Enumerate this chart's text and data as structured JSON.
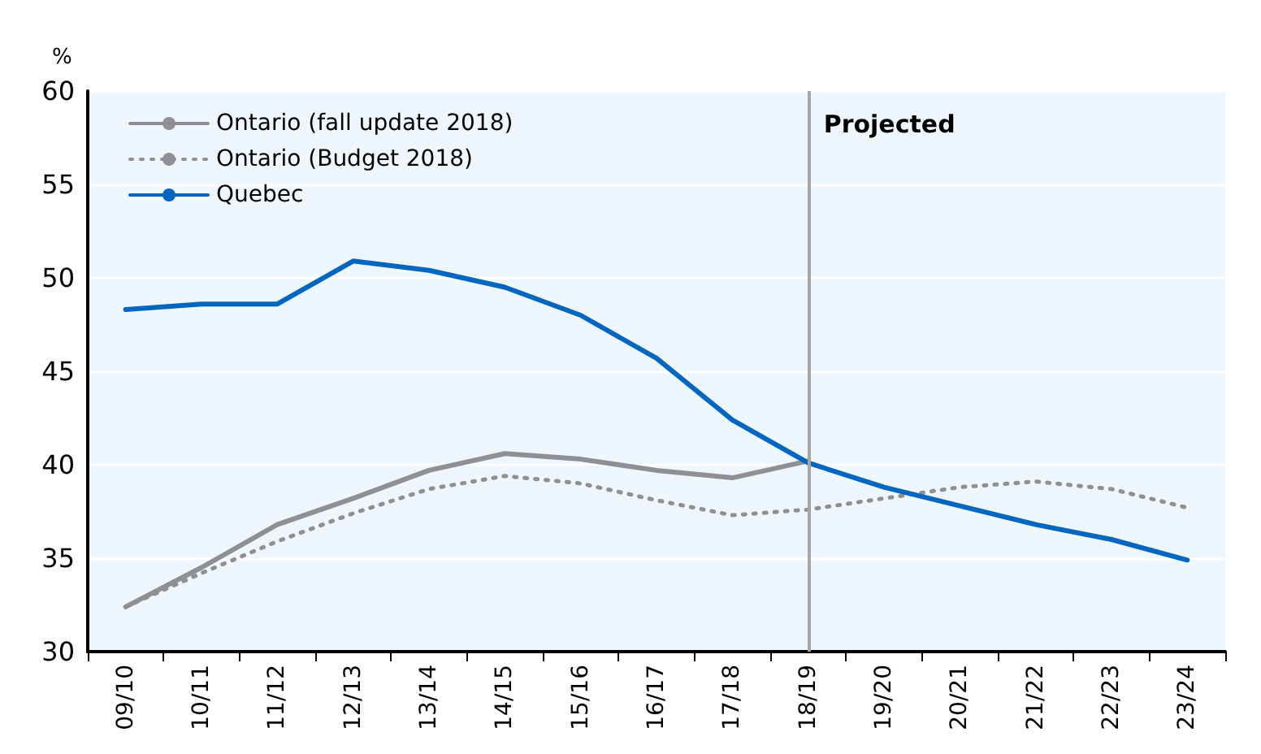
{
  "chart_data": {
    "type": "line",
    "ylabel": "%",
    "categories": [
      "09/10",
      "10/11",
      "11/12",
      "12/13",
      "13/14",
      "14/15",
      "15/16",
      "16/17",
      "17/18",
      "18/19",
      "19/20",
      "20/21",
      "21/22",
      "22/23",
      "23/24"
    ],
    "series": [
      {
        "name": "Ontario (fall update 2018)",
        "color": "#8e9095",
        "line_style": "solid",
        "values": [
          32.4,
          34.5,
          36.8,
          38.2,
          39.7,
          40.6,
          40.3,
          39.7,
          39.3,
          40.2,
          null,
          null,
          null,
          null,
          null
        ]
      },
      {
        "name": "Ontario (Budget 2018)",
        "color": "#8e9095",
        "line_style": "dotted",
        "values": [
          32.4,
          34.2,
          35.9,
          37.4,
          38.7,
          39.4,
          39.0,
          38.1,
          37.3,
          37.6,
          38.2,
          38.8,
          39.1,
          38.7,
          37.7
        ]
      },
      {
        "name": "Quebec",
        "color": "#0066c0",
        "line_style": "solid",
        "values": [
          48.3,
          48.6,
          48.6,
          50.9,
          50.4,
          49.5,
          48.0,
          45.7,
          42.4,
          40.1,
          38.8,
          37.8,
          36.8,
          36.0,
          34.9
        ]
      }
    ],
    "ylim": [
      30,
      60
    ],
    "yticks": [
      30,
      35,
      40,
      45,
      50,
      55,
      60
    ],
    "grid": "y",
    "legend": "top left",
    "marker": "none",
    "ref_lines": [
      {
        "axis": "x",
        "value": "18/19",
        "label": "Projected",
        "color": "#a6a6a6"
      }
    ]
  }
}
